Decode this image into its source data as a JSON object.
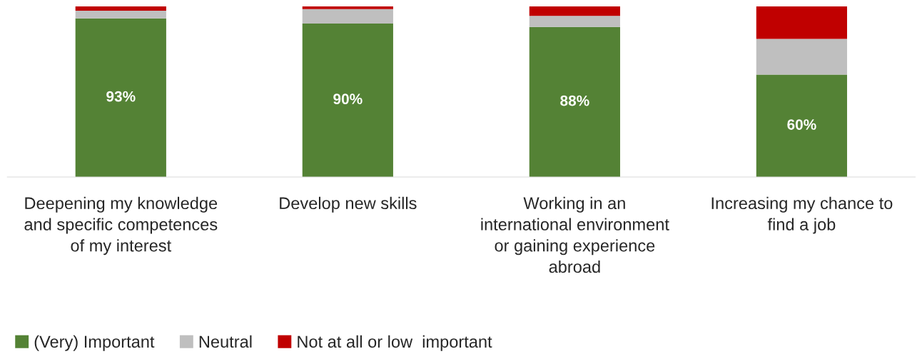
{
  "chart_data": {
    "type": "bar",
    "stacked": true,
    "ylim": [
      0,
      100
    ],
    "tick_labels": "x",
    "legend": "bottom left",
    "categories": [
      "Deepening my knowledge\nand specific competences\nof my interest",
      "Develop new skills",
      "Working in an\ninternational environment\nor gaining experience\nabroad",
      "Increasing my chance to\nfind a job"
    ],
    "series": [
      {
        "name": "(Very) Important",
        "color": "#548235",
        "values": [
          93,
          90,
          88,
          60
        ],
        "value_labels": [
          "93%",
          "90%",
          "88%",
          "60%"
        ]
      },
      {
        "name": "Neutral",
        "color": "#bfbfbf",
        "values": [
          4.5,
          8.5,
          6.5,
          21
        ]
      },
      {
        "name": "Not at all or low  important",
        "color": "#c00000",
        "values": [
          2.5,
          1.5,
          5.5,
          19
        ]
      }
    ]
  }
}
